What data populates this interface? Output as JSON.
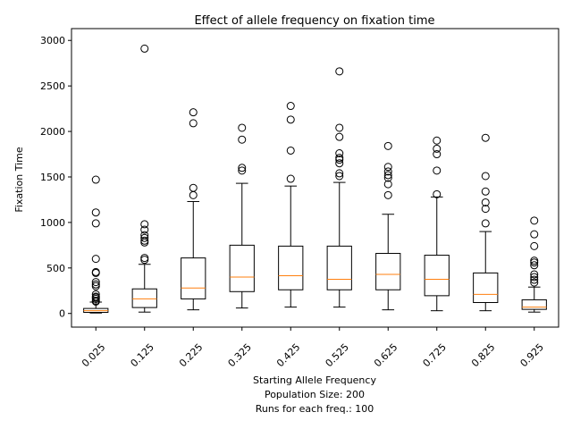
{
  "chart_data": {
    "type": "box",
    "title": "Effect of allele frequency on fixation time",
    "ylabel": "Fixation Time",
    "xlabel_lines": [
      "Starting Allele Frequency",
      "Population Size: 200",
      "Runs for each freq.: 100"
    ],
    "ylim": [
      -150,
      3130
    ],
    "yticks": [
      0,
      500,
      1000,
      1500,
      2000,
      2500,
      3000
    ],
    "categories": [
      "0.025",
      "0.125",
      "0.225",
      "0.325",
      "0.425",
      "0.525",
      "0.625",
      "0.725",
      "0.825",
      "0.925"
    ],
    "boxes": [
      {
        "whisker_low": 5,
        "q1": 12,
        "median": 30,
        "q3": 55,
        "whisker_high": 125,
        "fliers": [
          1470,
          1110,
          990,
          600,
          455,
          445,
          345,
          320,
          300,
          210,
          185,
          175,
          160,
          140,
          130
        ]
      },
      {
        "whisker_low": 15,
        "q1": 65,
        "median": 160,
        "q3": 270,
        "whisker_high": 540,
        "fliers": [
          2910,
          980,
          920,
          860,
          830,
          800,
          780,
          610,
          590
        ]
      },
      {
        "whisker_low": 40,
        "q1": 160,
        "median": 280,
        "q3": 610,
        "whisker_high": 1230,
        "fliers": [
          2210,
          2090,
          1380,
          1300
        ]
      },
      {
        "whisker_low": 60,
        "q1": 240,
        "median": 400,
        "q3": 750,
        "whisker_high": 1430,
        "fliers": [
          2040,
          1910,
          1600,
          1570
        ]
      },
      {
        "whisker_low": 70,
        "q1": 260,
        "median": 415,
        "q3": 740,
        "whisker_high": 1400,
        "fliers": [
          2280,
          2130,
          1790,
          1480
        ]
      },
      {
        "whisker_low": 70,
        "q1": 260,
        "median": 375,
        "q3": 740,
        "whisker_high": 1440,
        "fliers": [
          2660,
          2040,
          1940,
          1760,
          1710,
          1690,
          1650,
          1540,
          1510
        ]
      },
      {
        "whisker_low": 40,
        "q1": 260,
        "median": 430,
        "q3": 660,
        "whisker_high": 1090,
        "fliers": [
          1840,
          1610,
          1560,
          1520,
          1490,
          1420,
          1300
        ]
      },
      {
        "whisker_low": 30,
        "q1": 195,
        "median": 375,
        "q3": 640,
        "whisker_high": 1280,
        "fliers": [
          1900,
          1810,
          1750,
          1570,
          1310
        ]
      },
      {
        "whisker_low": 30,
        "q1": 120,
        "median": 210,
        "q3": 445,
        "whisker_high": 900,
        "fliers": [
          1930,
          1510,
          1340,
          1220,
          1150,
          990
        ]
      },
      {
        "whisker_low": 15,
        "q1": 45,
        "median": 70,
        "q3": 150,
        "whisker_high": 290,
        "fliers": [
          1020,
          870,
          740,
          580,
          560,
          530,
          430,
          400,
          370,
          340
        ]
      }
    ],
    "colors": {
      "box": "#000000",
      "median": "#ff7f0e",
      "flier": "#000000"
    },
    "grid": false,
    "legend": "none"
  }
}
